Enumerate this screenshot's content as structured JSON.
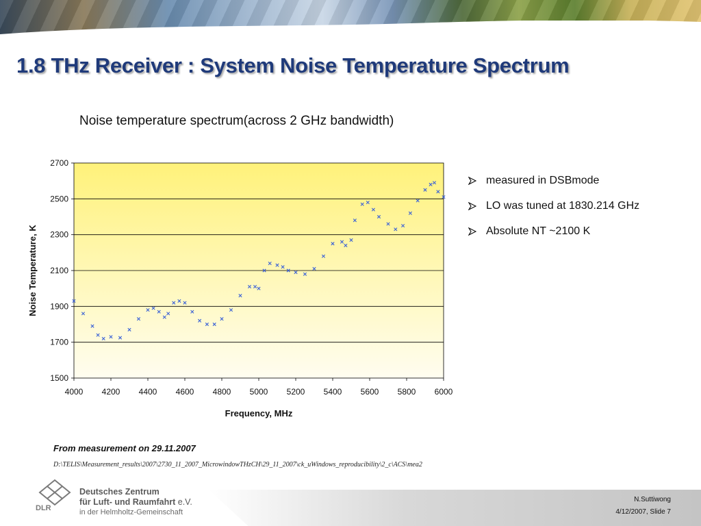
{
  "slide": {
    "title": "1.8 THz Receiver : System Noise Temperature Spectrum",
    "bullets": [
      "measured in DSBmode",
      "LO was tuned at 1830.214 GHz",
      "Absolute NT ~2100 K"
    ],
    "note": "From measurement on 29.11.2007",
    "path": "D:\\TELIS\\Measurement_results\\2007\\2730_11_2007_MicrowindowTHzCH\\29_11_2007\\ck_uWindows_reproducibility\\2_c\\ACS\\mea2",
    "footer": {
      "org_line1": "Deutsches Zentrum",
      "org_line2_bold": "für Luft- und Raumfahrt",
      "org_line2_suffix": " e.V.",
      "org_line3": "in der Helmholtz-Gemeinschaft",
      "logo_text": "DLR",
      "author": "N.Suttiwong",
      "date_slide": "4/12/2007, Slide 7"
    }
  },
  "colors": {
    "title": "#1f3a7a",
    "marker": "#3b62d6",
    "plot_top": "#fff27a",
    "plot_bottom": "#fffdf0"
  },
  "chart_data": {
    "type": "scatter",
    "title": "Noise temperature spectrum(across 2 GHz bandwidth)",
    "xlabel": "Frequency, MHz",
    "ylabel": "Noise Temperature, K",
    "xlim": [
      4000,
      6000
    ],
    "ylim": [
      1500,
      2700
    ],
    "xticks": [
      4000,
      4200,
      4400,
      4600,
      4800,
      5000,
      5200,
      5400,
      5600,
      5800,
      6000
    ],
    "yticks": [
      1500,
      1700,
      1900,
      2100,
      2300,
      2500,
      2700
    ],
    "grid": "horizontal",
    "marker": "x",
    "series": [
      {
        "x": [
          4000,
          4050,
          4100,
          4130,
          4160,
          4200,
          4250,
          4300,
          4350,
          4400,
          4430,
          4460,
          4490,
          4510,
          4540,
          4570,
          4600,
          4640,
          4680,
          4720,
          4760,
          4800,
          4850,
          4900,
          4950,
          4980,
          5000,
          5030,
          5060,
          5100,
          5130,
          5160,
          5200,
          5250,
          5300,
          5350,
          5400,
          5450,
          5470,
          5500,
          5520,
          5560,
          5590,
          5620,
          5650,
          5700,
          5740,
          5780,
          5820,
          5860,
          5900,
          5930,
          5950,
          5970,
          6000
        ],
        "y": [
          1930,
          1860,
          1790,
          1740,
          1720,
          1730,
          1725,
          1770,
          1830,
          1880,
          1890,
          1870,
          1840,
          1860,
          1920,
          1930,
          1920,
          1870,
          1820,
          1800,
          1800,
          1830,
          1880,
          1960,
          2010,
          2010,
          2000,
          2100,
          2140,
          2130,
          2120,
          2100,
          2090,
          2080,
          2110,
          2180,
          2250,
          2260,
          2240,
          2270,
          2380,
          2470,
          2480,
          2440,
          2400,
          2360,
          2330,
          2350,
          2420,
          2490,
          2550,
          2580,
          2590,
          2540,
          2510
        ]
      }
    ]
  }
}
